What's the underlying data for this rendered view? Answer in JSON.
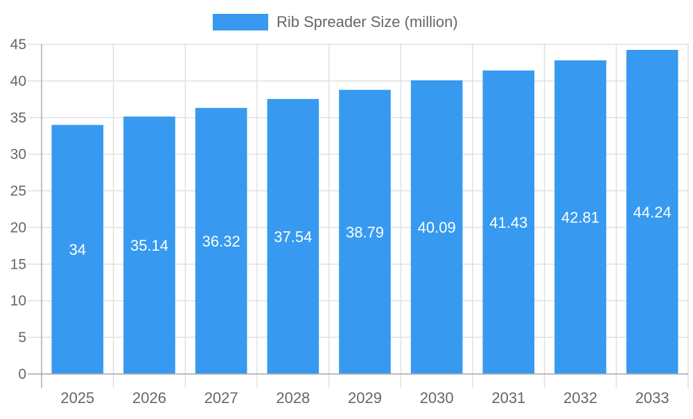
{
  "chart_data": {
    "type": "bar",
    "title": "",
    "xlabel": "",
    "ylabel": "",
    "categories": [
      "2025",
      "2026",
      "2027",
      "2028",
      "2029",
      "2030",
      "2031",
      "2032",
      "2033"
    ],
    "series": [
      {
        "name": "Rib Spreader Size (million)",
        "values": [
          34,
          35.14,
          36.32,
          37.54,
          38.79,
          40.09,
          41.43,
          42.81,
          44.24
        ],
        "color": "#379AF0"
      }
    ],
    "data_labels": [
      "34",
      "35.14",
      "36.32",
      "37.54",
      "38.79",
      "40.09",
      "41.43",
      "42.81",
      "44.24"
    ],
    "ylim": [
      0,
      45
    ],
    "yticks": [
      0,
      5,
      10,
      15,
      20,
      25,
      30,
      35,
      40,
      45
    ],
    "grid": true,
    "legend_position": "top"
  }
}
